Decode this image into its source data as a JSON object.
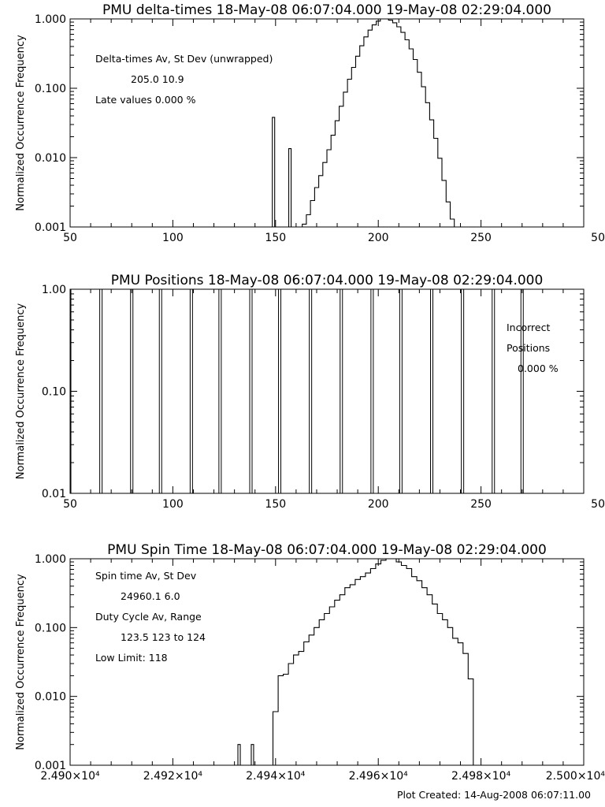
{
  "footer": "Plot Created: 14-Aug-2008 06:07:11.00",
  "chart_data": [
    {
      "type": "step",
      "title": "PMU delta-times 18-May-08 06:07:04.000 19-May-08 02:29:04.000",
      "ylabel": "Normalized Occurrence Frequency",
      "xlabel": "",
      "y_scale": "log",
      "xlim": [
        50,
        300
      ],
      "ylim": [
        0.001,
        1.0
      ],
      "x_tick_labels": [
        "50",
        "100",
        "150",
        "200",
        "250",
        "50"
      ],
      "y_tick_labels": [
        "0.001",
        "0.010",
        "0.100",
        "1.000"
      ],
      "annotations": [
        "Delta-times Av, St Dev (unwrapped)",
        "205.0    10.9",
        "Late values    0.000 %"
      ],
      "spikes": [
        {
          "x": 149,
          "y": 0.038
        },
        {
          "x": 157,
          "y": 0.0135
        }
      ],
      "x": [
        164,
        166,
        168,
        170,
        172,
        174,
        176,
        178,
        180,
        182,
        184,
        186,
        188,
        190,
        192,
        194,
        196,
        198,
        200,
        202,
        204,
        206,
        208,
        210,
        212,
        214,
        216,
        218,
        220,
        222,
        224,
        226,
        228,
        230,
        232,
        234,
        236,
        238,
        240
      ],
      "y": [
        0.0011,
        0.0015,
        0.0024,
        0.0037,
        0.0055,
        0.0085,
        0.013,
        0.021,
        0.034,
        0.055,
        0.088,
        0.135,
        0.2,
        0.29,
        0.41,
        0.55,
        0.69,
        0.82,
        0.93,
        1.0,
        1.0,
        0.96,
        0.88,
        0.77,
        0.64,
        0.5,
        0.37,
        0.26,
        0.17,
        0.105,
        0.062,
        0.035,
        0.019,
        0.0098,
        0.0047,
        0.0023,
        0.0013,
        0.001,
        0.001
      ]
    },
    {
      "type": "bar",
      "title": "PMU Positions 18-May-08 06:07:04.000 19-May-08 02:29:04.000",
      "ylabel": "Normalized Occurrence Frequency",
      "xlabel": "",
      "y_scale": "log",
      "xlim": [
        50,
        300
      ],
      "ylim": [
        0.01,
        1.0
      ],
      "x_tick_labels": [
        "50",
        "100",
        "150",
        "200",
        "250",
        "50"
      ],
      "y_tick_labels": [
        "0.01",
        "0.10",
        "1.00"
      ],
      "annotations": [
        "Incorrect",
        "Positions",
        "0.000 %"
      ],
      "x": [
        65,
        80,
        94,
        109,
        123,
        138,
        152,
        167,
        182,
        197,
        211,
        226,
        241,
        256,
        270
      ],
      "y": [
        1.0,
        1.0,
        1.0,
        1.0,
        1.0,
        1.0,
        1.0,
        1.0,
        1.0,
        1.0,
        1.0,
        1.0,
        1.0,
        1.0,
        1.0
      ]
    },
    {
      "type": "step",
      "title": "PMU Spin Time 18-May-08 06:07:04.000 19-May-08 02:29:04.000",
      "ylabel": "Normalized Occurrence Frequency",
      "xlabel": "",
      "y_scale": "log",
      "xlim": [
        24900,
        25000
      ],
      "ylim": [
        0.001,
        1.0
      ],
      "x_tick_labels": [
        "2.490×10⁴",
        "2.492×10⁴",
        "2.494×10⁴",
        "2.496×10⁴",
        "2.498×10⁴",
        "2.500×10⁴"
      ],
      "y_tick_labels": [
        "0.001",
        "0.010",
        "0.100",
        "1.000"
      ],
      "annotations": [
        "Spin time Av, St Dev",
        "24960.1       6.0",
        "Duty Cycle Av, Range",
        "123.5 123 to 124",
        "Low Limit: 118"
      ],
      "spikes": [
        {
          "x": 24932.9,
          "y": 0.002
        },
        {
          "x": 24935.5,
          "y": 0.002
        }
      ],
      "x": [
        24940,
        24941,
        24942,
        24943,
        24944,
        24945,
        24946,
        24947,
        24948,
        24949,
        24950,
        24951,
        24952,
        24953,
        24954,
        24955,
        24956,
        24957,
        24958,
        24959,
        24960,
        24961,
        24962,
        24963,
        24964,
        24965,
        24966,
        24967,
        24968,
        24969,
        24970,
        24971,
        24972,
        24973,
        24974,
        24975,
        24976,
        24977,
        24978
      ],
      "y": [
        0.006,
        0.02,
        0.021,
        0.03,
        0.04,
        0.045,
        0.062,
        0.078,
        0.1,
        0.13,
        0.16,
        0.2,
        0.25,
        0.3,
        0.38,
        0.42,
        0.5,
        0.55,
        0.62,
        0.72,
        0.84,
        0.95,
        1.0,
        1.0,
        0.9,
        0.8,
        0.72,
        0.55,
        0.48,
        0.38,
        0.3,
        0.22,
        0.16,
        0.13,
        0.1,
        0.07,
        0.06,
        0.042,
        0.018
      ]
    }
  ]
}
